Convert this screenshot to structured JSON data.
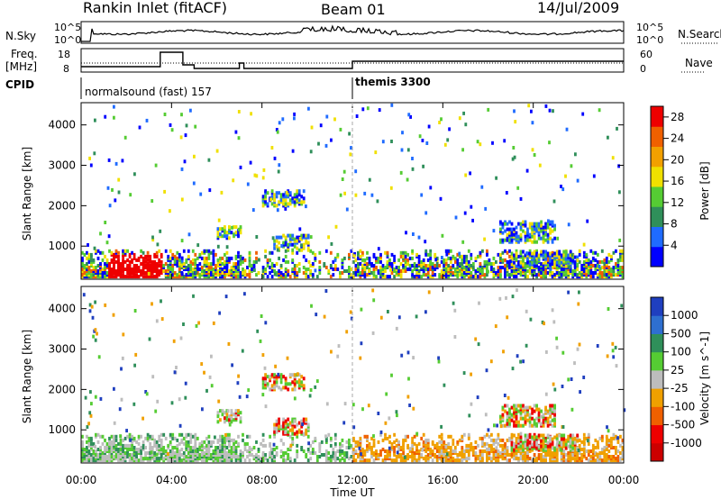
{
  "header": {
    "station": "Rankin Inlet (fitACF)",
    "beam": "Beam 01",
    "date": "14/Jul/2009"
  },
  "strip_labels": {
    "nsky": "N.Sky",
    "nsearch": "N.Search",
    "freq_line1": "Freq.",
    "freq_line2": "[MHz]",
    "cpid": "CPID",
    "nave": "Nave"
  },
  "strip_ticks": {
    "noise_left": [
      "10^5",
      "10^0"
    ],
    "noise_right": [
      "10^5",
      "10^0"
    ],
    "freq_left": [
      "18",
      "8"
    ],
    "nave_right": [
      "60",
      "0"
    ]
  },
  "cpid_segments": [
    {
      "label": "normalsound (fast) 157",
      "start_hour": 0
    },
    {
      "label": "themis 3300",
      "start_hour": 12
    }
  ],
  "chart_data": [
    {
      "type": "heatmap",
      "panel": "power",
      "xlabel": "Time UT",
      "ylabel": "Slant Range [km]",
      "x_ticks": [
        "00:00",
        "04:00",
        "08:00",
        "12:00",
        "16:00",
        "20:00",
        "00:00"
      ],
      "xlim_hours": [
        0,
        24
      ],
      "y_ticks": [
        1000,
        2000,
        3000,
        4000
      ],
      "ylim": [
        180,
        4550
      ],
      "colorbar_label": "Power [dB]",
      "colorbar_ticks": [
        4,
        8,
        12,
        16,
        20,
        24,
        28
      ],
      "colorbar_range": [
        0,
        30
      ],
      "colorbar_colors": [
        "#0000ff",
        "#1f6bff",
        "#2f8f5a",
        "#55cc33",
        "#f0e000",
        "#f2a000",
        "#f06000",
        "#ee0000"
      ]
    },
    {
      "type": "heatmap",
      "panel": "velocity",
      "xlabel": "Time UT",
      "ylabel": "Slant Range [km]",
      "x_ticks": [
        "00:00",
        "04:00",
        "08:00",
        "12:00",
        "16:00",
        "20:00",
        "00:00"
      ],
      "xlim_hours": [
        0,
        24
      ],
      "y_ticks": [
        1000,
        2000,
        3000,
        4000
      ],
      "ylim": [
        180,
        4550
      ],
      "colorbar_label": "Velocity [m s^-1]",
      "colorbar_ticks": [
        "1000",
        "500",
        "100",
        "25",
        "-25",
        "-100",
        "-500",
        "-1000"
      ],
      "colorbar_colors": [
        "#1f3fbf",
        "#2e6fd0",
        "#2f8f5a",
        "#55cc33",
        "#bdbdbd",
        "#f0a000",
        "#f06000",
        "#ee0000",
        "#cc0000"
      ]
    }
  ],
  "colors": {
    "axis": "#000000",
    "marker_line": "#aaaaaa"
  }
}
